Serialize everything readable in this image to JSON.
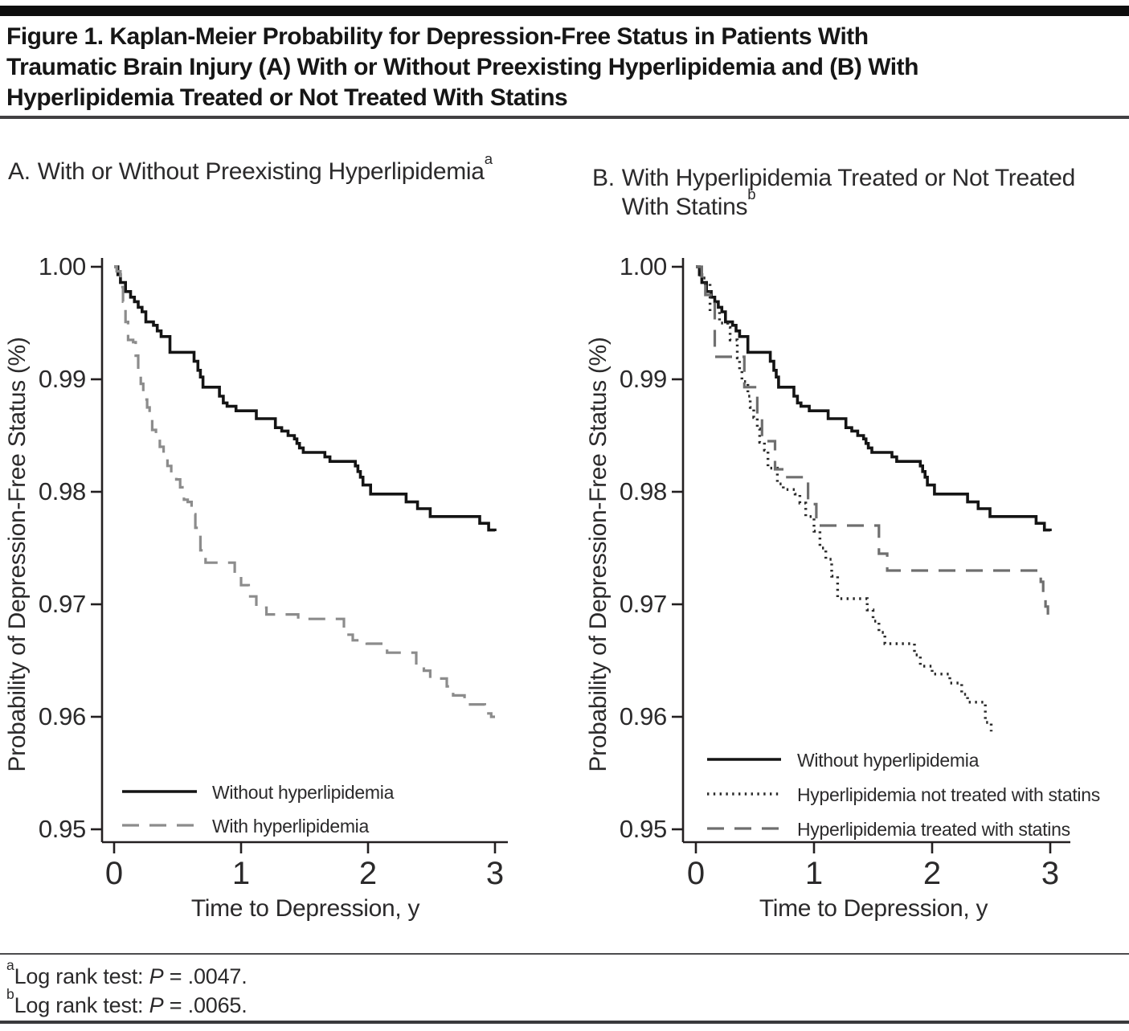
{
  "header": {
    "title_lines": [
      "Figure 1. Kaplan-Meier Probability for Depression-Free Status in Patients With",
      "Traumatic Brain Injury (A) With or Without Preexisting Hyperlipidemia and (B) With",
      "Hyperlipidemia Treated or Not Treated With Statins"
    ]
  },
  "panels": [
    {
      "label": "A.",
      "title_line1": "With or Without Preexisting Hyperlipidemia",
      "marker_line1": "a",
      "title_line2": "",
      "marker_line2": ""
    },
    {
      "label": "B.",
      "title_line1": "With Hyperlipidemia Treated or Not Treated",
      "marker_line1": "",
      "title_line2": "With Statins",
      "marker_line2": "b"
    }
  ],
  "chart_data": [
    {
      "type": "line",
      "subtype": "kaplan-meier-step",
      "panel": "A",
      "title": "A. With or Without Preexisting Hyperlipidemia",
      "xlabel": "Time to Depression, y",
      "ylabel": "Probability of Depression-Free Status (%)",
      "xlim": [
        0,
        3
      ],
      "ylim": [
        0.95,
        1.0
      ],
      "xticks": [
        "0",
        "1",
        "2",
        "3"
      ],
      "yticks": [
        "1.00",
        "0.99",
        "0.98",
        "0.97",
        "0.96",
        "0.95"
      ],
      "grid": false,
      "legend_position": "inside-bottom-left",
      "log_rank_p": ".0047",
      "series": [
        {
          "name": "Without hyperlipidemia",
          "style": "solid",
          "color": "#141414",
          "points": [
            [
              0.0,
              1.0
            ],
            [
              0.03,
              0.9993
            ],
            [
              0.05,
              0.9986
            ],
            [
              0.09,
              0.9978
            ],
            [
              0.13,
              0.9973
            ],
            [
              0.16,
              0.9969
            ],
            [
              0.19,
              0.9964
            ],
            [
              0.22,
              0.996
            ],
            [
              0.25,
              0.9951
            ],
            [
              0.31,
              0.9948
            ],
            [
              0.34,
              0.9943
            ],
            [
              0.37,
              0.9938
            ],
            [
              0.44,
              0.9924
            ],
            [
              0.63,
              0.9916
            ],
            [
              0.66,
              0.9908
            ],
            [
              0.68,
              0.9902
            ],
            [
              0.7,
              0.9893
            ],
            [
              0.83,
              0.9885
            ],
            [
              0.86,
              0.9879
            ],
            [
              0.89,
              0.9876
            ],
            [
              0.96,
              0.9872
            ],
            [
              1.12,
              0.9865
            ],
            [
              1.27,
              0.9857
            ],
            [
              1.32,
              0.9854
            ],
            [
              1.37,
              0.985
            ],
            [
              1.42,
              0.9847
            ],
            [
              1.44,
              0.9843
            ],
            [
              1.46,
              0.9839
            ],
            [
              1.49,
              0.9835
            ],
            [
              1.66,
              0.9831
            ],
            [
              1.7,
              0.9827
            ],
            [
              1.9,
              0.9823
            ],
            [
              1.92,
              0.9818
            ],
            [
              1.94,
              0.9813
            ],
            [
              1.96,
              0.9806
            ],
            [
              2.02,
              0.9798
            ],
            [
              2.3,
              0.9791
            ],
            [
              2.39,
              0.9785
            ],
            [
              2.49,
              0.9778
            ],
            [
              2.88,
              0.9772
            ],
            [
              2.95,
              0.9766
            ],
            [
              3.0,
              0.9765
            ]
          ]
        },
        {
          "name": "With hyperlipidemia",
          "style": "dashed",
          "color": "#8c8c8c",
          "points": [
            [
              0.0,
              1.0
            ],
            [
              0.02,
              0.9996
            ],
            [
              0.05,
              0.9982
            ],
            [
              0.07,
              0.9969
            ],
            [
              0.09,
              0.9951
            ],
            [
              0.11,
              0.9935
            ],
            [
              0.15,
              0.9933
            ],
            [
              0.17,
              0.9921
            ],
            [
              0.19,
              0.9909
            ],
            [
              0.21,
              0.9896
            ],
            [
              0.23,
              0.9882
            ],
            [
              0.26,
              0.9875
            ],
            [
              0.28,
              0.9866
            ],
            [
              0.3,
              0.9855
            ],
            [
              0.33,
              0.9847
            ],
            [
              0.36,
              0.984
            ],
            [
              0.39,
              0.9832
            ],
            [
              0.42,
              0.9823
            ],
            [
              0.45,
              0.9814
            ],
            [
              0.49,
              0.9811
            ],
            [
              0.52,
              0.9804
            ],
            [
              0.55,
              0.9793
            ],
            [
              0.58,
              0.9791
            ],
            [
              0.61,
              0.978
            ],
            [
              0.64,
              0.9768
            ],
            [
              0.68,
              0.9748
            ],
            [
              0.72,
              0.9737
            ],
            [
              0.95,
              0.9727
            ],
            [
              1.0,
              0.9717
            ],
            [
              1.06,
              0.9707
            ],
            [
              1.12,
              0.9697
            ],
            [
              1.2,
              0.9691
            ],
            [
              1.45,
              0.9687
            ],
            [
              1.81,
              0.9673
            ],
            [
              1.88,
              0.9668
            ],
            [
              1.99,
              0.9665
            ],
            [
              2.15,
              0.9657
            ],
            [
              2.38,
              0.9646
            ],
            [
              2.44,
              0.9641
            ],
            [
              2.49,
              0.9634
            ],
            [
              2.62,
              0.9627
            ],
            [
              2.67,
              0.9619
            ],
            [
              2.76,
              0.9611
            ],
            [
              2.92,
              0.9603
            ],
            [
              2.97,
              0.96
            ],
            [
              3.0,
              0.96
            ]
          ]
        }
      ]
    },
    {
      "type": "line",
      "subtype": "kaplan-meier-step",
      "panel": "B",
      "title": "B. With Hyperlipidemia Treated or Not Treated With Statins",
      "xlabel": "Time to Depression, y",
      "ylabel": "Probability of Depression-Free Status (%)",
      "xlim": [
        0,
        3
      ],
      "ylim": [
        0.95,
        1.0
      ],
      "xticks": [
        "0",
        "1",
        "2",
        "3"
      ],
      "yticks": [
        "1.00",
        "0.99",
        "0.98",
        "0.97",
        "0.96",
        "0.95"
      ],
      "grid": false,
      "legend_position": "inside-bottom-left",
      "log_rank_p": ".0065",
      "series": [
        {
          "name": "Without hyperlipidemia",
          "style": "solid",
          "color": "#141414",
          "points": [
            [
              0.0,
              1.0
            ],
            [
              0.03,
              0.9993
            ],
            [
              0.05,
              0.9986
            ],
            [
              0.09,
              0.9978
            ],
            [
              0.13,
              0.9973
            ],
            [
              0.16,
              0.9969
            ],
            [
              0.19,
              0.9964
            ],
            [
              0.22,
              0.996
            ],
            [
              0.25,
              0.9951
            ],
            [
              0.31,
              0.9948
            ],
            [
              0.34,
              0.9943
            ],
            [
              0.37,
              0.9938
            ],
            [
              0.44,
              0.9924
            ],
            [
              0.63,
              0.9916
            ],
            [
              0.66,
              0.9908
            ],
            [
              0.68,
              0.9902
            ],
            [
              0.7,
              0.9893
            ],
            [
              0.83,
              0.9885
            ],
            [
              0.86,
              0.9879
            ],
            [
              0.89,
              0.9876
            ],
            [
              0.96,
              0.9872
            ],
            [
              1.12,
              0.9865
            ],
            [
              1.27,
              0.9857
            ],
            [
              1.32,
              0.9854
            ],
            [
              1.37,
              0.985
            ],
            [
              1.42,
              0.9847
            ],
            [
              1.44,
              0.9843
            ],
            [
              1.46,
              0.9839
            ],
            [
              1.49,
              0.9835
            ],
            [
              1.66,
              0.9831
            ],
            [
              1.7,
              0.9827
            ],
            [
              1.9,
              0.9823
            ],
            [
              1.92,
              0.9818
            ],
            [
              1.94,
              0.9813
            ],
            [
              1.96,
              0.9806
            ],
            [
              2.02,
              0.9798
            ],
            [
              2.3,
              0.9791
            ],
            [
              2.39,
              0.9785
            ],
            [
              2.49,
              0.9778
            ],
            [
              2.88,
              0.9772
            ],
            [
              2.95,
              0.9766
            ],
            [
              3.0,
              0.9765
            ]
          ]
        },
        {
          "name": "Hyperlipidemia not treated with statins",
          "style": "dotted",
          "color": "#2a2a2a",
          "points": [
            [
              0.0,
              1.0
            ],
            [
              0.04,
              0.999
            ],
            [
              0.08,
              0.9985
            ],
            [
              0.12,
              0.996
            ],
            [
              0.2,
              0.995
            ],
            [
              0.27,
              0.9946
            ],
            [
              0.29,
              0.9935
            ],
            [
              0.35,
              0.9919
            ],
            [
              0.37,
              0.9909
            ],
            [
              0.39,
              0.9898
            ],
            [
              0.44,
              0.9885
            ],
            [
              0.46,
              0.9875
            ],
            [
              0.49,
              0.9866
            ],
            [
              0.52,
              0.9856
            ],
            [
              0.54,
              0.9844
            ],
            [
              0.58,
              0.9837
            ],
            [
              0.61,
              0.9821
            ],
            [
              0.69,
              0.9807
            ],
            [
              0.74,
              0.9802
            ],
            [
              0.84,
              0.9798
            ],
            [
              0.88,
              0.979
            ],
            [
              0.93,
              0.9778
            ],
            [
              1.0,
              0.9765
            ],
            [
              1.05,
              0.975
            ],
            [
              1.1,
              0.974
            ],
            [
              1.15,
              0.9725
            ],
            [
              1.2,
              0.9705
            ],
            [
              1.45,
              0.9695
            ],
            [
              1.5,
              0.9685
            ],
            [
              1.55,
              0.9675
            ],
            [
              1.6,
              0.9665
            ],
            [
              1.85,
              0.9655
            ],
            [
              1.9,
              0.9645
            ],
            [
              2.0,
              0.9638
            ],
            [
              2.15,
              0.963
            ],
            [
              2.25,
              0.962
            ],
            [
              2.3,
              0.9613
            ],
            [
              2.45,
              0.9595
            ],
            [
              2.5,
              0.9587
            ]
          ]
        },
        {
          "name": "Hyperlipidemia treated with statins",
          "style": "dashed",
          "color": "#6f6f6f",
          "points": [
            [
              0.0,
              1.0
            ],
            [
              0.05,
              0.999
            ],
            [
              0.08,
              0.9975
            ],
            [
              0.16,
              0.992
            ],
            [
              0.41,
              0.9893
            ],
            [
              0.52,
              0.9868
            ],
            [
              0.56,
              0.9845
            ],
            [
              0.67,
              0.982
            ],
            [
              0.75,
              0.9813
            ],
            [
              0.95,
              0.9789
            ],
            [
              1.02,
              0.977
            ],
            [
              1.55,
              0.9745
            ],
            [
              1.62,
              0.973
            ],
            [
              2.92,
              0.972
            ],
            [
              2.94,
              0.971
            ],
            [
              2.96,
              0.9698
            ],
            [
              2.98,
              0.969
            ],
            [
              3.0,
              0.969
            ]
          ]
        }
      ]
    }
  ],
  "footnotes": [
    {
      "marker": "a",
      "text": "Log rank test: ",
      "p": "P",
      "result": " = .0047."
    },
    {
      "marker": "b",
      "text": "Log rank test: ",
      "p": "P",
      "result": " = .0065."
    }
  ],
  "colors": {
    "text": "#231f20",
    "axis": "#231f20",
    "solid_curve": "#141414",
    "dashed_gray": "#8c8c8c",
    "dashed_dark": "#6f6f6f",
    "dotted": "#2a2a2a",
    "top_bar": "#0d0d0d",
    "rules": "#414042"
  }
}
